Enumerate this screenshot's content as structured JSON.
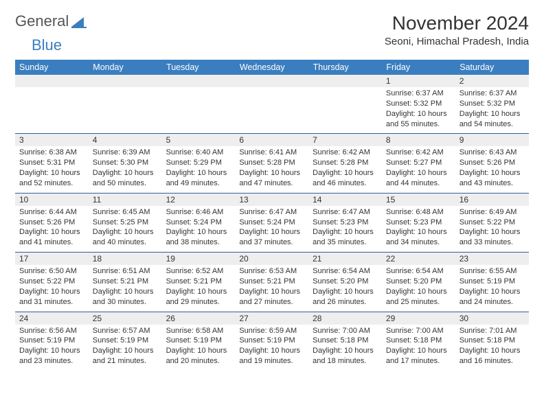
{
  "logo": {
    "part1": "General",
    "part2": "Blue"
  },
  "title": "November 2024",
  "location": "Seoni, Himachal Pradesh, India",
  "colors": {
    "header_bg": "#3a7ebf",
    "header_text": "#ffffff",
    "row_divider": "#2f5f8f",
    "daynum_bg": "#eeeeee",
    "body_text": "#333333"
  },
  "typography": {
    "title_fontsize": 28,
    "location_fontsize": 15,
    "header_fontsize": 12.5,
    "cell_fontsize": 11
  },
  "day_headers": [
    "Sunday",
    "Monday",
    "Tuesday",
    "Wednesday",
    "Thursday",
    "Friday",
    "Saturday"
  ],
  "weeks": [
    [
      null,
      null,
      null,
      null,
      null,
      {
        "n": "1",
        "sunrise": "Sunrise: 6:37 AM",
        "sunset": "Sunset: 5:32 PM",
        "daylight": "Daylight: 10 hours and 55 minutes."
      },
      {
        "n": "2",
        "sunrise": "Sunrise: 6:37 AM",
        "sunset": "Sunset: 5:32 PM",
        "daylight": "Daylight: 10 hours and 54 minutes."
      }
    ],
    [
      {
        "n": "3",
        "sunrise": "Sunrise: 6:38 AM",
        "sunset": "Sunset: 5:31 PM",
        "daylight": "Daylight: 10 hours and 52 minutes."
      },
      {
        "n": "4",
        "sunrise": "Sunrise: 6:39 AM",
        "sunset": "Sunset: 5:30 PM",
        "daylight": "Daylight: 10 hours and 50 minutes."
      },
      {
        "n": "5",
        "sunrise": "Sunrise: 6:40 AM",
        "sunset": "Sunset: 5:29 PM",
        "daylight": "Daylight: 10 hours and 49 minutes."
      },
      {
        "n": "6",
        "sunrise": "Sunrise: 6:41 AM",
        "sunset": "Sunset: 5:28 PM",
        "daylight": "Daylight: 10 hours and 47 minutes."
      },
      {
        "n": "7",
        "sunrise": "Sunrise: 6:42 AM",
        "sunset": "Sunset: 5:28 PM",
        "daylight": "Daylight: 10 hours and 46 minutes."
      },
      {
        "n": "8",
        "sunrise": "Sunrise: 6:42 AM",
        "sunset": "Sunset: 5:27 PM",
        "daylight": "Daylight: 10 hours and 44 minutes."
      },
      {
        "n": "9",
        "sunrise": "Sunrise: 6:43 AM",
        "sunset": "Sunset: 5:26 PM",
        "daylight": "Daylight: 10 hours and 43 minutes."
      }
    ],
    [
      {
        "n": "10",
        "sunrise": "Sunrise: 6:44 AM",
        "sunset": "Sunset: 5:26 PM",
        "daylight": "Daylight: 10 hours and 41 minutes."
      },
      {
        "n": "11",
        "sunrise": "Sunrise: 6:45 AM",
        "sunset": "Sunset: 5:25 PM",
        "daylight": "Daylight: 10 hours and 40 minutes."
      },
      {
        "n": "12",
        "sunrise": "Sunrise: 6:46 AM",
        "sunset": "Sunset: 5:24 PM",
        "daylight": "Daylight: 10 hours and 38 minutes."
      },
      {
        "n": "13",
        "sunrise": "Sunrise: 6:47 AM",
        "sunset": "Sunset: 5:24 PM",
        "daylight": "Daylight: 10 hours and 37 minutes."
      },
      {
        "n": "14",
        "sunrise": "Sunrise: 6:47 AM",
        "sunset": "Sunset: 5:23 PM",
        "daylight": "Daylight: 10 hours and 35 minutes."
      },
      {
        "n": "15",
        "sunrise": "Sunrise: 6:48 AM",
        "sunset": "Sunset: 5:23 PM",
        "daylight": "Daylight: 10 hours and 34 minutes."
      },
      {
        "n": "16",
        "sunrise": "Sunrise: 6:49 AM",
        "sunset": "Sunset: 5:22 PM",
        "daylight": "Daylight: 10 hours and 33 minutes."
      }
    ],
    [
      {
        "n": "17",
        "sunrise": "Sunrise: 6:50 AM",
        "sunset": "Sunset: 5:22 PM",
        "daylight": "Daylight: 10 hours and 31 minutes."
      },
      {
        "n": "18",
        "sunrise": "Sunrise: 6:51 AM",
        "sunset": "Sunset: 5:21 PM",
        "daylight": "Daylight: 10 hours and 30 minutes."
      },
      {
        "n": "19",
        "sunrise": "Sunrise: 6:52 AM",
        "sunset": "Sunset: 5:21 PM",
        "daylight": "Daylight: 10 hours and 29 minutes."
      },
      {
        "n": "20",
        "sunrise": "Sunrise: 6:53 AM",
        "sunset": "Sunset: 5:21 PM",
        "daylight": "Daylight: 10 hours and 27 minutes."
      },
      {
        "n": "21",
        "sunrise": "Sunrise: 6:54 AM",
        "sunset": "Sunset: 5:20 PM",
        "daylight": "Daylight: 10 hours and 26 minutes."
      },
      {
        "n": "22",
        "sunrise": "Sunrise: 6:54 AM",
        "sunset": "Sunset: 5:20 PM",
        "daylight": "Daylight: 10 hours and 25 minutes."
      },
      {
        "n": "23",
        "sunrise": "Sunrise: 6:55 AM",
        "sunset": "Sunset: 5:19 PM",
        "daylight": "Daylight: 10 hours and 24 minutes."
      }
    ],
    [
      {
        "n": "24",
        "sunrise": "Sunrise: 6:56 AM",
        "sunset": "Sunset: 5:19 PM",
        "daylight": "Daylight: 10 hours and 23 minutes."
      },
      {
        "n": "25",
        "sunrise": "Sunrise: 6:57 AM",
        "sunset": "Sunset: 5:19 PM",
        "daylight": "Daylight: 10 hours and 21 minutes."
      },
      {
        "n": "26",
        "sunrise": "Sunrise: 6:58 AM",
        "sunset": "Sunset: 5:19 PM",
        "daylight": "Daylight: 10 hours and 20 minutes."
      },
      {
        "n": "27",
        "sunrise": "Sunrise: 6:59 AM",
        "sunset": "Sunset: 5:19 PM",
        "daylight": "Daylight: 10 hours and 19 minutes."
      },
      {
        "n": "28",
        "sunrise": "Sunrise: 7:00 AM",
        "sunset": "Sunset: 5:18 PM",
        "daylight": "Daylight: 10 hours and 18 minutes."
      },
      {
        "n": "29",
        "sunrise": "Sunrise: 7:00 AM",
        "sunset": "Sunset: 5:18 PM",
        "daylight": "Daylight: 10 hours and 17 minutes."
      },
      {
        "n": "30",
        "sunrise": "Sunrise: 7:01 AM",
        "sunset": "Sunset: 5:18 PM",
        "daylight": "Daylight: 10 hours and 16 minutes."
      }
    ]
  ]
}
